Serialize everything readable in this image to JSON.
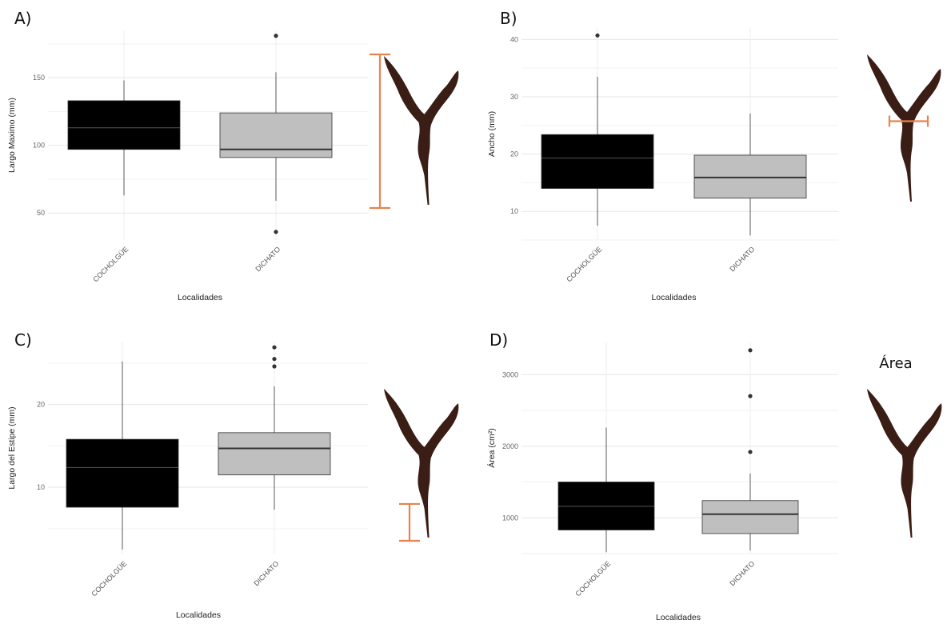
{
  "figure": {
    "extra_label": "Área",
    "accent_color": "#e8834e",
    "seaweed_color": "#3a1e16"
  },
  "chart_data": [
    {
      "panel": "A)",
      "type": "boxplot",
      "xlabel": "Localidades",
      "ylabel": "Largo Maximo (mm)",
      "yticks": [
        50,
        100,
        150
      ],
      "ylim": [
        30,
        185
      ],
      "categories": [
        "COCHOLGÜE",
        "DICHATO"
      ],
      "fill_colors": [
        "#000000",
        "#bfbfbf"
      ],
      "median_colors": [
        "#555555",
        "#333333"
      ],
      "boxes": [
        {
          "whisker_low": 63,
          "q1": 97,
          "median": 113,
          "q3": 133,
          "whisker_high": 148,
          "outliers": []
        },
        {
          "whisker_low": 59,
          "q1": 91,
          "median": 97,
          "q3": 124,
          "whisker_high": 154,
          "outliers": [
            181,
            36
          ]
        }
      ],
      "illustration": {
        "indicator": "length",
        "range": [
          0.0,
          1.0
        ]
      }
    },
    {
      "panel": "B)",
      "type": "boxplot",
      "xlabel": "Localidades",
      "ylabel": "Ancho (mm)",
      "yticks": [
        10,
        20,
        30,
        40
      ],
      "ylim": [
        5,
        42
      ],
      "categories": [
        "COCHOLGÜE",
        "DICHATO"
      ],
      "fill_colors": [
        "#000000",
        "#bfbfbf"
      ],
      "median_colors": [
        "#555555",
        "#333333"
      ],
      "boxes": [
        {
          "whisker_low": 7.5,
          "q1": 14,
          "median": 19.3,
          "q3": 23.4,
          "whisker_high": 33.5,
          "outliers": [
            40.7
          ]
        },
        {
          "whisker_low": 5.8,
          "q1": 12.3,
          "median": 15.9,
          "q3": 19.8,
          "whisker_high": 27.1,
          "outliers": []
        }
      ],
      "illustration": {
        "indicator": "width",
        "range": [
          0.45,
          0.45
        ]
      }
    },
    {
      "panel": "C)",
      "type": "boxplot",
      "xlabel": "Localidades",
      "ylabel": "Largo del Estipe (mm)",
      "yticks": [
        10,
        20
      ],
      "ylim": [
        2,
        27.5
      ],
      "categories": [
        "COCHOLGÜE",
        "DICHATO"
      ],
      "fill_colors": [
        "#000000",
        "#bfbfbf"
      ],
      "median_colors": [
        "#555555",
        "#333333"
      ],
      "boxes": [
        {
          "whisker_low": 2.5,
          "q1": 7.6,
          "median": 12.4,
          "q3": 15.8,
          "whisker_high": 25.2,
          "outliers": []
        },
        {
          "whisker_low": 7.3,
          "q1": 11.5,
          "median": 14.7,
          "q3": 16.6,
          "whisker_high": 22.2,
          "outliers": [
            26.9,
            25.5,
            24.6
          ]
        }
      ],
      "illustration": {
        "indicator": "length",
        "range": [
          0.76,
          1.0
        ]
      }
    },
    {
      "panel": "D)",
      "type": "boxplot",
      "xlabel": "Localidades",
      "ylabel": "Área (cm²)",
      "yticks": [
        1000,
        2000,
        3000
      ],
      "ylim": [
        500,
        3450
      ],
      "categories": [
        "COCHOLGÜE",
        "DICHATO"
      ],
      "fill_colors": [
        "#000000",
        "#bfbfbf"
      ],
      "median_colors": [
        "#555555",
        "#333333"
      ],
      "boxes": [
        {
          "whisker_low": 520,
          "q1": 830,
          "median": 1160,
          "q3": 1500,
          "whisker_high": 2260,
          "outliers": []
        },
        {
          "whisker_low": 540,
          "q1": 780,
          "median": 1050,
          "q3": 1240,
          "whisker_high": 1620,
          "outliers": [
            3340,
            2700,
            1920
          ]
        }
      ],
      "illustration": {
        "indicator": "none"
      }
    }
  ]
}
